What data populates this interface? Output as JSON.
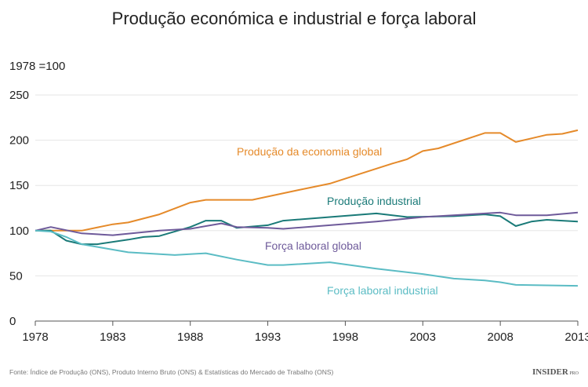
{
  "chart_data": {
    "type": "line",
    "title": "Produção económica e industrial e força laboral",
    "ylabel": "1978 =100",
    "xlim": [
      1978,
      2013
    ],
    "ylim": [
      0,
      250
    ],
    "xticks": [
      1978,
      1983,
      1988,
      1993,
      1998,
      2003,
      2008,
      2013
    ],
    "yticks": [
      0,
      50,
      100,
      150,
      200,
      250
    ],
    "grid": true,
    "legend": "inline labels",
    "series": [
      {
        "name": "Produção da economia global",
        "color": "#e58a2a",
        "x": [
          1978,
          1979,
          1981,
          1983,
          1984,
          1986,
          1988,
          1989,
          1992,
          1995,
          1997,
          1999,
          2001,
          2002,
          2003,
          2004,
          2007,
          2008,
          2009,
          2010,
          2011,
          2012,
          2013
        ],
        "y": [
          100,
          100,
          100,
          107,
          109,
          118,
          131,
          134,
          134,
          145,
          152,
          163,
          174,
          179,
          188,
          191,
          208,
          208,
          198,
          202,
          206,
          207,
          211
        ]
      },
      {
        "name": "Produção industrial",
        "color": "#1a7a78",
        "x": [
          1978,
          1979,
          1980,
          1981,
          1982,
          1984,
          1985,
          1986,
          1988,
          1989,
          1990,
          1991,
          1993,
          1994,
          1997,
          2000,
          2002,
          2005,
          2007,
          2008,
          2009,
          2010,
          2011,
          2013
        ],
        "y": [
          100,
          100,
          89,
          85,
          85,
          90,
          93,
          94,
          104,
          111,
          111,
          103,
          106,
          111,
          115,
          119,
          115,
          116,
          118,
          116,
          105,
          110,
          112,
          110
        ]
      },
      {
        "name": "Força laboral global",
        "color": "#6e5a9a",
        "x": [
          1978,
          1979,
          1981,
          1983,
          1986,
          1988,
          1990,
          1991,
          1993,
          1994,
          2000,
          2003,
          2008,
          2009,
          2011,
          2013
        ],
        "y": [
          100,
          104,
          97,
          95,
          100,
          102,
          108,
          104,
          103,
          102,
          110,
          115,
          120,
          117,
          117,
          120
        ]
      },
      {
        "name": "Força laboral industrial",
        "color": "#5bbcc4",
        "x": [
          1978,
          1979,
          1980,
          1981,
          1983,
          1984,
          1987,
          1989,
          1991,
          1993,
          1994,
          1997,
          2000,
          2003,
          2005,
          2007,
          2008,
          2009,
          2013
        ],
        "y": [
          100,
          99,
          93,
          85,
          79,
          76,
          73,
          75,
          68,
          62,
          62,
          65,
          58,
          52,
          47,
          45,
          43,
          40,
          39
        ]
      }
    ],
    "source": "Fonte: Índice de Produção (ONS), Produto Interno Bruto (ONS) & Estatísticas do Mercado de Trabalho (ONS)",
    "logo": "INSIDER PRO"
  }
}
